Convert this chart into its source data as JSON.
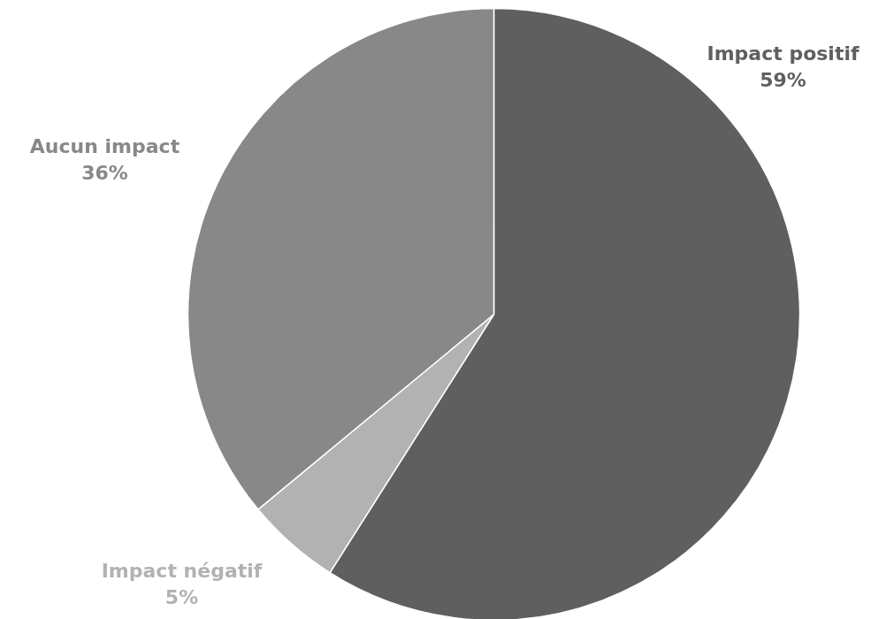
{
  "chart_data": {
    "type": "pie",
    "categories": [
      "Impact positif",
      "Impact négatif",
      "Aucun impact"
    ],
    "values": [
      59,
      5,
      36
    ],
    "colors": [
      "#5f5f5f",
      "#b2b2b2",
      "#888888"
    ],
    "value_labels": [
      "59%",
      "5%",
      "36%"
    ]
  }
}
